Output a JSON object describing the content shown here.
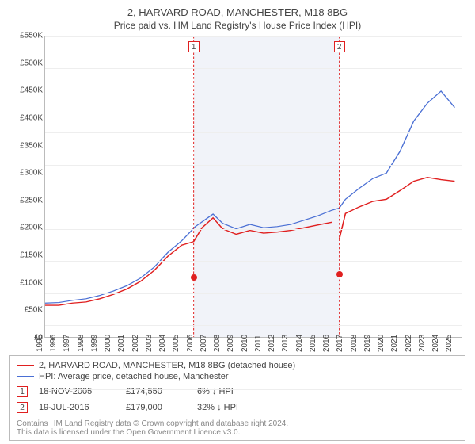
{
  "title": {
    "main": "2, HARVARD ROAD, MANCHESTER, M18 8BG",
    "sub": "Price paid vs. HM Land Registry's House Price Index (HPI)"
  },
  "chart": {
    "type": "line",
    "xlim": [
      1995,
      2025.5
    ],
    "ylim": [
      0,
      550000
    ],
    "y_ticks": [
      0,
      50000,
      100000,
      150000,
      200000,
      250000,
      300000,
      350000,
      400000,
      450000,
      500000,
      550000
    ],
    "y_tick_labels": [
      "£0",
      "£50K",
      "£100K",
      "£150K",
      "£200K",
      "£250K",
      "£300K",
      "£350K",
      "£400K",
      "£450K",
      "£500K",
      "£550K"
    ],
    "x_ticks": [
      1995,
      1996,
      1997,
      1998,
      1999,
      2000,
      2001,
      2002,
      2003,
      2004,
      2005,
      2006,
      2007,
      2008,
      2009,
      2010,
      2011,
      2012,
      2013,
      2014,
      2015,
      2016,
      2017,
      2018,
      2019,
      2020,
      2021,
      2022,
      2023,
      2024,
      2025
    ],
    "background_color": "#ffffff",
    "grid_color": "#eeeeee",
    "shaded_range": [
      2005.88,
      2016.55
    ],
    "shaded_color": "rgba(120,140,200,0.10)",
    "marker_box_colors": {
      "1": "#e02020",
      "2": "#e02020"
    },
    "series": [
      {
        "name": "property",
        "label": "2, HARVARD ROAD, MANCHESTER, M18 8BG (detached house)",
        "color": "#e02020",
        "line_width": 1.6,
        "points": [
          [
            1995,
            58000
          ],
          [
            1996,
            58000
          ],
          [
            1997,
            62000
          ],
          [
            1998,
            64000
          ],
          [
            1999,
            70000
          ],
          [
            2000,
            78000
          ],
          [
            2001,
            88000
          ],
          [
            2002,
            102000
          ],
          [
            2003,
            122000
          ],
          [
            2004,
            148000
          ],
          [
            2005,
            168000
          ],
          [
            2005.88,
            174550
          ],
          [
            2006.5,
            200000
          ],
          [
            2007.3,
            218000
          ],
          [
            2008,
            198000
          ],
          [
            2009,
            188000
          ],
          [
            2010,
            195000
          ],
          [
            2011,
            190000
          ],
          [
            2012,
            192000
          ],
          [
            2013,
            195000
          ],
          [
            2014,
            200000
          ],
          [
            2015,
            205000
          ],
          [
            2016,
            210000
          ],
          [
            2016.55,
            179000
          ],
          [
            2017,
            226000
          ],
          [
            2018,
            238000
          ],
          [
            2019,
            248000
          ],
          [
            2020,
            252000
          ],
          [
            2021,
            268000
          ],
          [
            2022,
            285000
          ],
          [
            2023,
            292000
          ],
          [
            2024,
            288000
          ],
          [
            2025,
            285000
          ]
        ],
        "break_before_index": 23
      },
      {
        "name": "hpi",
        "label": "HPI: Average price, detached house, Manchester",
        "color": "#4a6fd4",
        "line_width": 1.4,
        "points": [
          [
            1995,
            62000
          ],
          [
            1996,
            63000
          ],
          [
            1997,
            67000
          ],
          [
            1998,
            70000
          ],
          [
            1999,
            76000
          ],
          [
            2000,
            84000
          ],
          [
            2001,
            94000
          ],
          [
            2002,
            108000
          ],
          [
            2003,
            128000
          ],
          [
            2004,
            155000
          ],
          [
            2005,
            176000
          ],
          [
            2006,
            202000
          ],
          [
            2007.3,
            225000
          ],
          [
            2008,
            208000
          ],
          [
            2009,
            198000
          ],
          [
            2010,
            206000
          ],
          [
            2011,
            200000
          ],
          [
            2012,
            202000
          ],
          [
            2013,
            206000
          ],
          [
            2014,
            214000
          ],
          [
            2015,
            222000
          ],
          [
            2016,
            232000
          ],
          [
            2016.55,
            236000
          ],
          [
            2017,
            252000
          ],
          [
            2018,
            272000
          ],
          [
            2019,
            290000
          ],
          [
            2020,
            300000
          ],
          [
            2021,
            340000
          ],
          [
            2022,
            395000
          ],
          [
            2023,
            428000
          ],
          [
            2024,
            450000
          ],
          [
            2025,
            420000
          ]
        ]
      }
    ],
    "sale_markers": [
      {
        "id": "1",
        "x": 2005.88,
        "y": 174550,
        "color": "#e02020"
      },
      {
        "id": "2",
        "x": 2016.55,
        "y": 179000,
        "color": "#e02020"
      }
    ]
  },
  "legend": {
    "items": [
      {
        "color": "#e02020",
        "text": "2, HARVARD ROAD, MANCHESTER, M18 8BG (detached house)"
      },
      {
        "color": "#4a6fd4",
        "text": "HPI: Average price, detached house, Manchester"
      }
    ]
  },
  "sales": [
    {
      "id": "1",
      "box_color": "#e02020",
      "date": "18-NOV-2005",
      "price": "£174,550",
      "diff": "6% ↓ HPI"
    },
    {
      "id": "2",
      "box_color": "#e02020",
      "date": "19-JUL-2016",
      "price": "£179,000",
      "diff": "32% ↓ HPI"
    }
  ],
  "footer": {
    "line1": "Contains HM Land Registry data © Crown copyright and database right 2024.",
    "line2": "This data is licensed under the Open Government Licence v3.0."
  }
}
